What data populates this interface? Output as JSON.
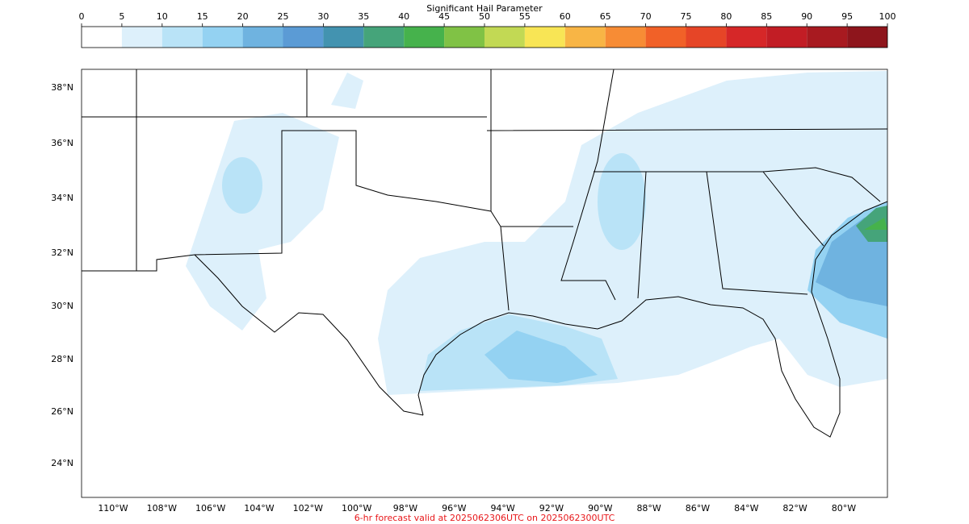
{
  "colorbar": {
    "title": "Significant Hail Parameter",
    "ticks": [
      0,
      5,
      10,
      15,
      20,
      25,
      30,
      35,
      40,
      45,
      50,
      55,
      60,
      65,
      70,
      75,
      80,
      85,
      90,
      95,
      100
    ],
    "colors": [
      "#ffffff",
      "#ddf0fb",
      "#b9e3f7",
      "#94d2f2",
      "#6fb3e0",
      "#5b9bd5",
      "#4393b0",
      "#45a47a",
      "#46b24c",
      "#80c245",
      "#c2d954",
      "#f8e555",
      "#f8b545",
      "#f78c35",
      "#f16128",
      "#e64527",
      "#d62728",
      "#c21d25",
      "#a81a20",
      "#8e151c"
    ]
  },
  "map": {
    "lat_labels": [
      "38°N",
      "36°N",
      "34°N",
      "32°N",
      "30°N",
      "28°N",
      "26°N",
      "24°N"
    ],
    "lon_labels": [
      "110°W",
      "108°W",
      "106°W",
      "104°W",
      "102°W",
      "100°W",
      "98°W",
      "96°W",
      "94°W",
      "92°W",
      "90°W",
      "88°W",
      "86°W",
      "84°W",
      "82°W",
      "80°W"
    ]
  },
  "footer": "6-hr forecast valid at 2025062306UTC on 2025062300UTC"
}
